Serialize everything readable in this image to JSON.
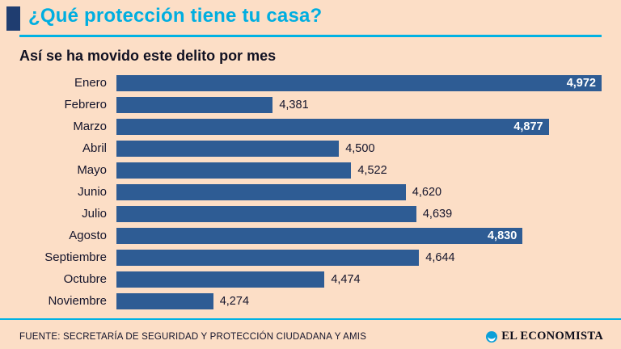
{
  "header": {
    "title": "¿Qué protección tiene tu casa?",
    "subtitle": "Así se ha movido este delito por mes"
  },
  "chart_data": {
    "type": "bar",
    "orientation": "horizontal",
    "title": "¿Qué protección tiene tu casa?",
    "subtitle": "Así se ha movido este delito por mes",
    "categories": [
      "Enero",
      "Febrero",
      "Marzo",
      "Abril",
      "Mayo",
      "Junio",
      "Julio",
      "Agosto",
      "Septiembre",
      "Octubre",
      "Noviembre"
    ],
    "values": [
      4972,
      4381,
      4877,
      4500,
      4522,
      4620,
      4639,
      4830,
      4644,
      4474,
      4274
    ],
    "value_labels": [
      "4,972",
      "4,381",
      "4,877",
      "4,500",
      "4,522",
      "4,620",
      "4,639",
      "4,830",
      "4,644",
      "4,474",
      "4,274"
    ],
    "label_inside": [
      true,
      false,
      true,
      false,
      false,
      false,
      false,
      true,
      false,
      false,
      false
    ],
    "axis_min": 4100,
    "axis_max": 4972,
    "grid": false,
    "legend": false,
    "bar_color": "#2e5c94"
  },
  "footer": {
    "source": "FUENTE: SECRETARÍA DE SEGURIDAD Y PROTECCIÓN CIUDADANA Y AMIS",
    "brand": "EL ECONOMISTA"
  },
  "colors": {
    "background": "#fcdec6",
    "accent_cyan": "#00b2e3",
    "bar_blue": "#2e5c94",
    "brand_navy": "#1f3d70",
    "text_dark": "#14142b"
  }
}
